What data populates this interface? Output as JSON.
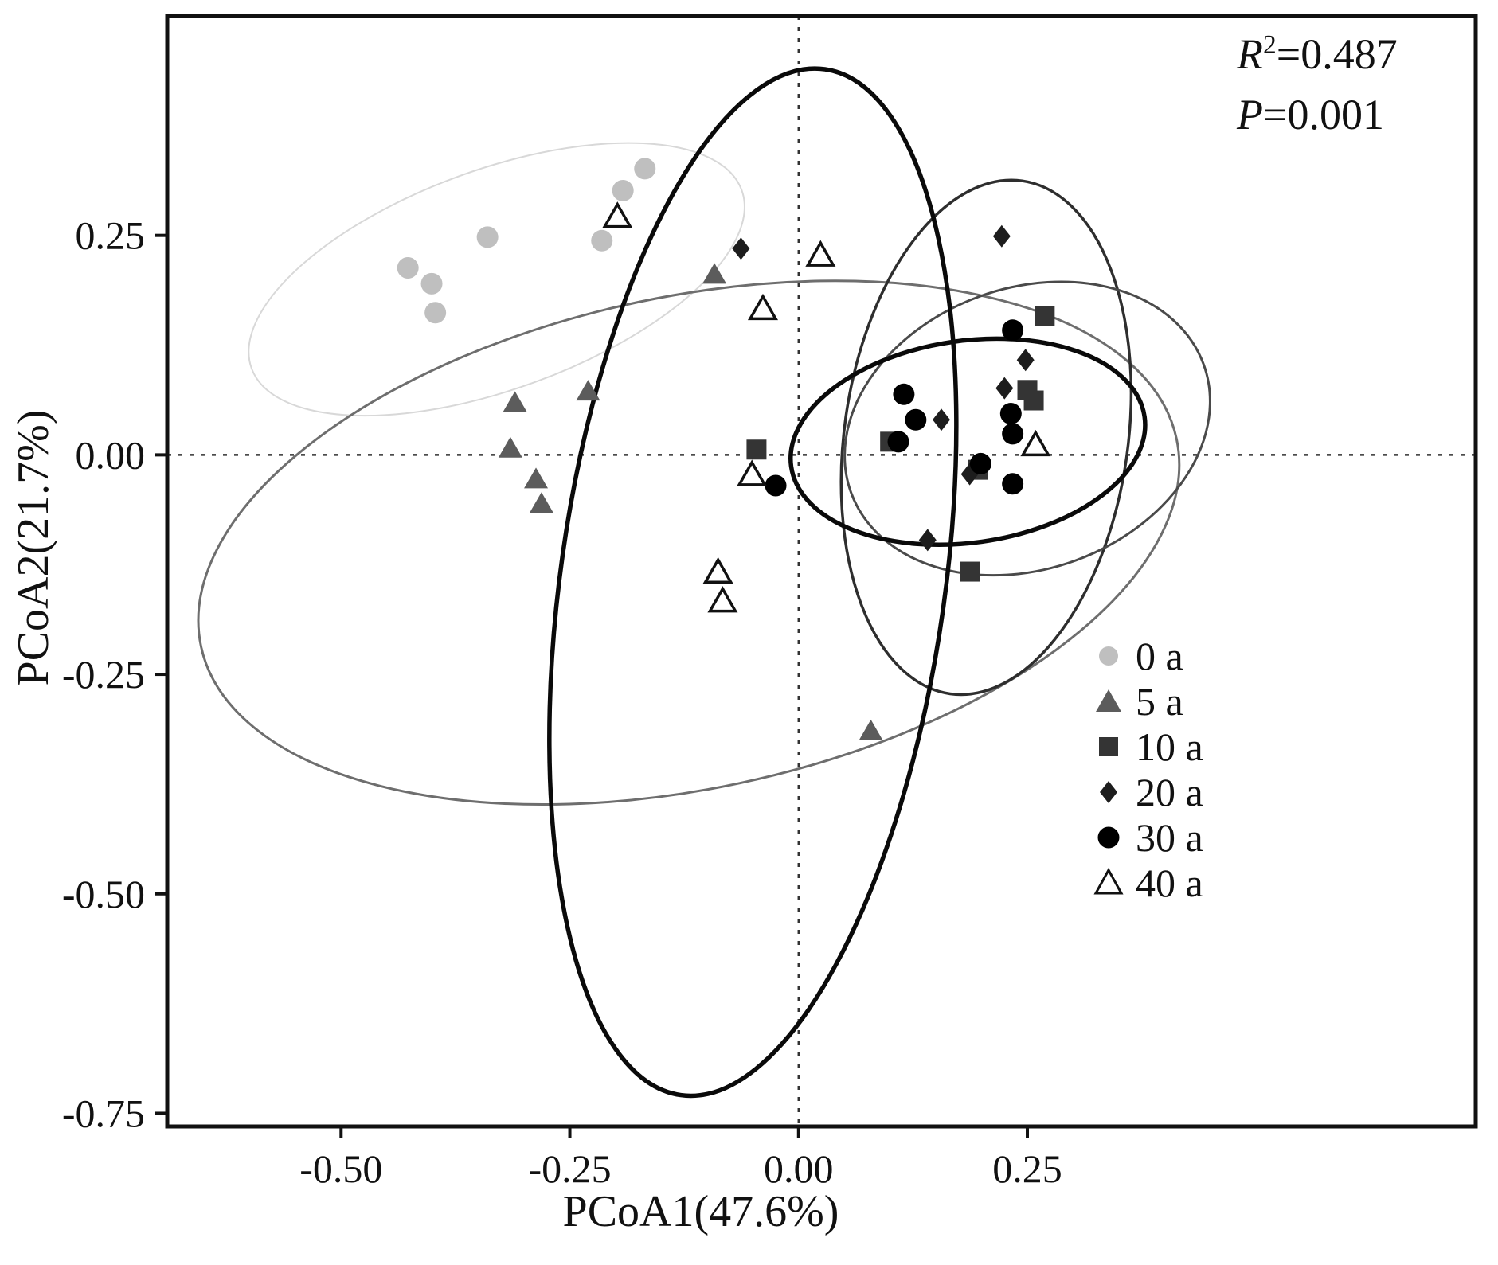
{
  "figure": {
    "annotation": {
      "r_var": "R",
      "r_sup": "2",
      "r_rest": "=0.487",
      "p_var": "P",
      "p_rest": "=0.001"
    }
  },
  "chart_data": {
    "type": "scatter",
    "title": "",
    "xlabel": "PCoA1(47.6%)",
    "ylabel": "PCoA2(21.7%)",
    "stats": {
      "R2": 0.487,
      "P": 0.001
    },
    "xlim": [
      -0.69,
      0.74
    ],
    "ylim": [
      -0.765,
      0.5
    ],
    "grid": false,
    "legend_position": "lower right",
    "xticks": [
      {
        "v": -0.5,
        "label": "-0.50"
      },
      {
        "v": -0.25,
        "label": "-0.25"
      },
      {
        "v": 0.0,
        "label": "0.00"
      },
      {
        "v": 0.25,
        "label": "0.25"
      }
    ],
    "yticks": [
      {
        "v": 0.25,
        "label": "0.25"
      },
      {
        "v": 0.0,
        "label": "0.00"
      },
      {
        "v": -0.25,
        "label": "-0.25"
      },
      {
        "v": -0.5,
        "label": "-0.50"
      },
      {
        "v": -0.75,
        "label": "-0.75"
      }
    ],
    "zero_lines": {
      "color": "#333333",
      "dash": "5 9",
      "width": 2.5
    },
    "series": [
      {
        "label": "0 a",
        "marker": "circle",
        "color": "#bfbfbf",
        "points": [
          [
            -0.168,
            0.326
          ],
          [
            -0.192,
            0.301
          ],
          [
            -0.215,
            0.244
          ],
          [
            -0.34,
            0.248
          ],
          [
            -0.427,
            0.213
          ],
          [
            -0.401,
            0.195
          ],
          [
            -0.397,
            0.162
          ]
        ],
        "ellipse": {
          "cx": -0.33,
          "cy": 0.2,
          "rx": 0.285,
          "ry": 0.125,
          "angle": 20,
          "color": "#d8d8d8",
          "width": 2
        }
      },
      {
        "label": "5 a",
        "marker": "triangle",
        "color": "#5c5c5c",
        "points": [
          [
            -0.092,
            0.204
          ],
          [
            -0.23,
            0.071
          ],
          [
            -0.31,
            0.058
          ],
          [
            -0.315,
            0.006
          ],
          [
            -0.287,
            -0.029
          ],
          [
            -0.281,
            -0.057
          ],
          [
            0.079,
            -0.316
          ]
        ],
        "ellipse": {
          "cx": -0.12,
          "cy": -0.1,
          "rx": 0.545,
          "ry": 0.28,
          "angle": 12,
          "color": "#6e6e6e",
          "width": 3
        }
      },
      {
        "label": "10 a",
        "marker": "square",
        "color": "#343434",
        "points": [
          [
            -0.046,
            0.006
          ],
          [
            0.1,
            0.015
          ],
          [
            0.269,
            0.158
          ],
          [
            0.25,
            0.074
          ],
          [
            0.257,
            0.062
          ],
          [
            0.196,
            -0.017
          ],
          [
            0.187,
            -0.133
          ]
        ],
        "ellipse": {
          "cx": 0.205,
          "cy": 0.02,
          "rx": 0.155,
          "ry": 0.295,
          "angle": -8,
          "color": "#2e2e2e",
          "width": 3.5
        }
      },
      {
        "label": "20 a",
        "marker": "diamond",
        "color": "#1d1d1d",
        "points": [
          [
            -0.063,
            0.235
          ],
          [
            0.222,
            0.249
          ],
          [
            0.248,
            0.108
          ],
          [
            0.225,
            0.076
          ],
          [
            0.156,
            0.04
          ],
          [
            0.187,
            -0.022
          ],
          [
            0.141,
            -0.097
          ]
        ],
        "ellipse": {
          "cx": 0.25,
          "cy": 0.03,
          "rx": 0.205,
          "ry": 0.16,
          "angle": 20,
          "color": "#4a4a4a",
          "width": 3
        }
      },
      {
        "label": "30 a",
        "marker": "circle",
        "color": "#000000",
        "points": [
          [
            0.115,
            0.069
          ],
          [
            0.128,
            0.04
          ],
          [
            0.109,
            0.015
          ],
          [
            0.234,
            0.142
          ],
          [
            0.232,
            0.047
          ],
          [
            0.234,
            0.024
          ],
          [
            0.234,
            -0.033
          ],
          [
            0.199,
            -0.01
          ],
          [
            -0.025,
            -0.035
          ]
        ],
        "ellipse": {
          "cx": 0.185,
          "cy": 0.015,
          "rx": 0.195,
          "ry": 0.115,
          "angle": 8,
          "color": "#0a0a0a",
          "width": 5.5
        }
      },
      {
        "label": "40 a",
        "marker": "triangle-open",
        "color": "#ffffff",
        "points": [
          [
            -0.198,
            0.27
          ],
          [
            0.024,
            0.226
          ],
          [
            -0.039,
            0.165
          ],
          [
            -0.051,
            -0.024
          ],
          [
            -0.088,
            -0.135
          ],
          [
            -0.083,
            -0.168
          ],
          [
            0.259,
            0.01
          ]
        ],
        "ellipse": {
          "cx": -0.05,
          "cy": -0.145,
          "rx": 0.21,
          "ry": 0.59,
          "angle": -8,
          "color": "#0a0a0a",
          "width": 5.5
        }
      }
    ]
  }
}
